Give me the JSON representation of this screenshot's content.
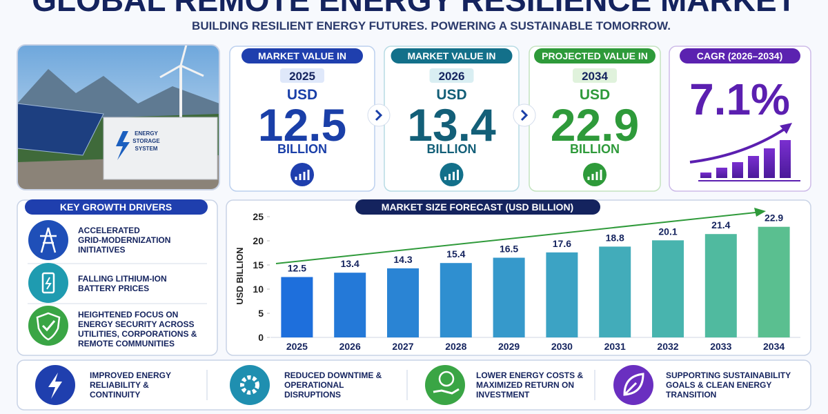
{
  "header": {
    "title": "GLOBAL REMOTE ENERGY RESILIENCE MARKET",
    "subtitle": "BUILDING RESILIENT ENERGY FUTURES. POWERING A SUSTAINABLE TOMORROW."
  },
  "image": {
    "container_label": [
      "ENERGY",
      "STORAGE",
      "SYSTEM"
    ]
  },
  "cards": [
    {
      "heading": "MARKET VALUE IN",
      "year": "2025",
      "currency": "USD",
      "value": "12.5",
      "unit": "BILLION"
    },
    {
      "heading": "MARKET VALUE IN",
      "year": "2026",
      "currency": "USD",
      "value": "13.4",
      "unit": "BILLION"
    },
    {
      "heading": "PROJECTED VALUE IN",
      "year": "2034",
      "currency": "USD",
      "value": "22.9",
      "unit": "BILLION"
    }
  ],
  "cagr": {
    "heading": "CAGR (2026–2034)",
    "value": "7.1%"
  },
  "drivers": {
    "heading": "KEY GROWTH DRIVERS",
    "items": [
      [
        "ACCELERATED",
        "GRID-MODERNIZATION",
        "INITIATIVES"
      ],
      [
        "FALLING LITHIUM-ION",
        "BATTERY PRICES"
      ],
      [
        "HEIGHTENED FOCUS ON",
        "ENERGY SECURITY ACROSS",
        "UTILITIES, CORPORATIONS &",
        "REMOTE COMMUNITIES"
      ]
    ]
  },
  "benefits": [
    [
      "IMPROVED ENERGY",
      "RELIABILITY &",
      "CONTINUITY"
    ],
    [
      "REDUCED DOWNTIME &",
      "OPERATIONAL",
      "DISRUPTIONS"
    ],
    [
      "LOWER ENERGY COSTS &",
      "MAXIMIZED RETURN ON",
      "INVESTMENT"
    ],
    [
      "SUPPORTING SUSTAINABILITY",
      "GOALS & CLEAN ENERGY",
      "TRANSITION"
    ]
  ],
  "chart_data": {
    "type": "bar",
    "title": "MARKET SIZE FORECAST (USD BILLION)",
    "y_label": "USD BILLION",
    "categories": [
      "2025",
      "2026",
      "2027",
      "2028",
      "2029",
      "2030",
      "2031",
      "2032",
      "2033",
      "2034"
    ],
    "values": [
      12.5,
      13.4,
      14.3,
      15.4,
      16.5,
      17.6,
      18.8,
      20.1,
      21.4,
      22.9
    ],
    "colors": [
      "#1e6fdc",
      "#2479d8",
      "#2a84d4",
      "#2f8fd0",
      "#3699cb",
      "#3ca3c4",
      "#42acba",
      "#48b4ae",
      "#50ba9f",
      "#5abf90"
    ],
    "ylim": [
      0,
      25
    ],
    "yticks": [
      0,
      5,
      10,
      15,
      20,
      25
    ],
    "grid": false
  }
}
